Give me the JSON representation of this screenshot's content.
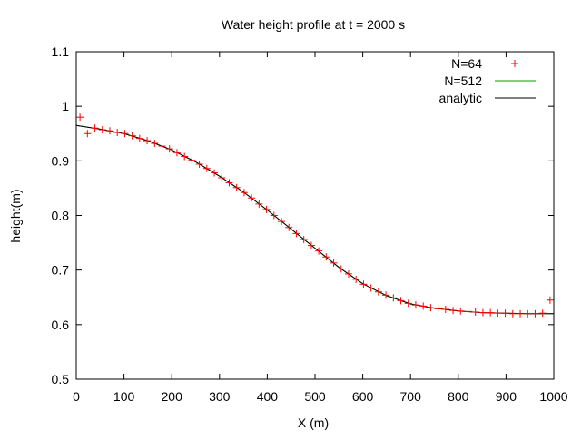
{
  "chart_data": {
    "type": "line",
    "title": "Water height profile at t = 2000 s",
    "xlabel": "X (m)",
    "ylabel": "height(m)",
    "xlim": [
      0,
      1000
    ],
    "ylim": [
      0.5,
      1.1
    ],
    "xticks": [
      "0",
      "100",
      "200",
      "300",
      "400",
      "500",
      "600",
      "700",
      "800",
      "900",
      "1000"
    ],
    "yticks": [
      "0.5",
      "0.6",
      "0.7",
      "0.8",
      "0.9",
      "1",
      "1.1"
    ],
    "grid": false,
    "legend": "top-right",
    "colors": {
      "N=64": "#ff0000",
      "N=512": "#00a000",
      "analytic": "#000000"
    },
    "series": [
      {
        "name": "N=64",
        "style": "points",
        "x": [
          7.8,
          23.4,
          39.1,
          54.7,
          70.3,
          85.9,
          101.6,
          117.2,
          132.8,
          148.4,
          164.1,
          179.7,
          195.3,
          210.9,
          226.6,
          242.2,
          257.8,
          273.4,
          289.1,
          304.7,
          320.3,
          335.9,
          351.6,
          367.2,
          382.8,
          398.4,
          414.1,
          429.7,
          445.3,
          460.9,
          476.6,
          492.2,
          507.8,
          523.4,
          539.1,
          554.7,
          570.3,
          585.9,
          601.6,
          617.2,
          632.8,
          648.4,
          664.1,
          679.7,
          695.3,
          710.9,
          726.6,
          742.2,
          757.8,
          773.4,
          789.1,
          804.7,
          820.3,
          835.9,
          851.6,
          867.2,
          882.8,
          898.4,
          914.1,
          929.7,
          945.3,
          960.9,
          976.6,
          992.2
        ],
        "y": [
          0.98,
          0.95,
          0.96,
          0.957,
          0.955,
          0.952,
          0.95,
          0.946,
          0.941,
          0.937,
          0.932,
          0.927,
          0.922,
          0.915,
          0.908,
          0.901,
          0.894,
          0.886,
          0.878,
          0.869,
          0.86,
          0.851,
          0.842,
          0.832,
          0.821,
          0.811,
          0.8,
          0.789,
          0.778,
          0.767,
          0.756,
          0.745,
          0.735,
          0.724,
          0.713,
          0.702,
          0.693,
          0.683,
          0.674,
          0.667,
          0.66,
          0.654,
          0.649,
          0.644,
          0.639,
          0.636,
          0.634,
          0.631,
          0.629,
          0.628,
          0.626,
          0.625,
          0.624,
          0.623,
          0.622,
          0.622,
          0.621,
          0.621,
          0.62,
          0.62,
          0.62,
          0.62,
          0.621,
          0.645
        ]
      },
      {
        "name": "N=512",
        "style": "line",
        "x": [
          0,
          50,
          100,
          150,
          200,
          250,
          300,
          350,
          400,
          450,
          500,
          550,
          600,
          650,
          700,
          750,
          800,
          850,
          900,
          950,
          1000
        ],
        "y": [
          0.965,
          0.958,
          0.95,
          0.937,
          0.92,
          0.898,
          0.872,
          0.843,
          0.81,
          0.775,
          0.74,
          0.705,
          0.675,
          0.653,
          0.638,
          0.63,
          0.625,
          0.622,
          0.621,
          0.62,
          0.62
        ]
      },
      {
        "name": "analytic",
        "style": "line",
        "x": [
          0,
          50,
          100,
          150,
          200,
          250,
          300,
          350,
          400,
          450,
          500,
          550,
          600,
          650,
          700,
          750,
          800,
          850,
          900,
          950,
          1000
        ],
        "y": [
          0.965,
          0.958,
          0.95,
          0.937,
          0.92,
          0.898,
          0.872,
          0.843,
          0.81,
          0.775,
          0.74,
          0.705,
          0.675,
          0.653,
          0.638,
          0.63,
          0.625,
          0.622,
          0.621,
          0.62,
          0.62
        ]
      }
    ]
  }
}
